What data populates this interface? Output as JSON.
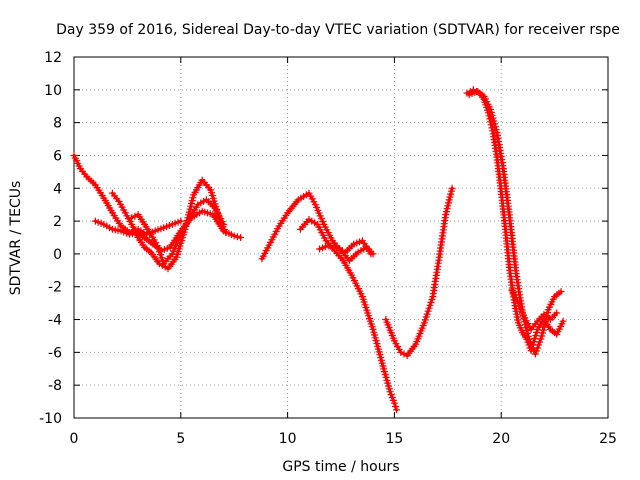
{
  "chart_data": {
    "type": "scatter",
    "title": "Day 359 of 2016, Sidereal Day-to-day VTEC variation (SDTVAR) for receiver rspe",
    "xlabel": "GPS time / hours",
    "ylabel": "SDTVAR / TECUs",
    "xlim": [
      0,
      25
    ],
    "ylim": [
      -10,
      12
    ],
    "xticks": [
      "0",
      "5",
      "10",
      "15",
      "20",
      "25"
    ],
    "yticks": [
      "-10",
      "-8",
      "-6",
      "-4",
      "-2",
      "0",
      "2",
      "4",
      "6",
      "8",
      "10",
      "12"
    ],
    "grid": true,
    "marker": "+",
    "color": "#ff0000",
    "series": [
      {
        "x": [
          0.0,
          0.3,
          0.6,
          1.0,
          1.4,
          1.8,
          2.2,
          2.6,
          3.0,
          3.4,
          3.8,
          4.2,
          4.6,
          5.0
        ],
        "y": [
          6.0,
          5.2,
          4.7,
          4.2,
          3.4,
          2.5,
          1.7,
          1.3,
          1.5,
          1.2,
          1.4,
          1.6,
          1.8,
          2.0
        ]
      },
      {
        "x": [
          1.0,
          1.4,
          1.8,
          2.2,
          2.6,
          3.0,
          3.3,
          3.7,
          4.1,
          4.5,
          5.0,
          5.5,
          6.0,
          6.5,
          7.0,
          7.5,
          7.8
        ],
        "y": [
          2.0,
          1.8,
          1.5,
          1.4,
          1.2,
          1.3,
          1.0,
          0.6,
          0.2,
          0.4,
          1.4,
          2.2,
          2.6,
          2.4,
          1.4,
          1.1,
          1.0
        ]
      },
      {
        "x": [
          1.8,
          2.1,
          2.4,
          2.7,
          3.0,
          3.3,
          3.6,
          4.0,
          4.4,
          4.8,
          5.2,
          5.6,
          6.0,
          6.4,
          6.8,
          7.1
        ],
        "y": [
          3.7,
          3.2,
          2.5,
          1.8,
          1.0,
          0.4,
          0.1,
          -0.6,
          -0.9,
          -0.2,
          1.5,
          3.6,
          4.5,
          3.9,
          2.2,
          1.3
        ]
      },
      {
        "x": [
          2.7,
          3.0,
          3.3,
          3.6,
          3.9,
          4.2,
          4.6,
          5.0,
          5.4,
          5.8,
          6.2,
          6.6,
          7.0
        ],
        "y": [
          2.2,
          2.4,
          1.8,
          1.2,
          0.5,
          -0.6,
          0.0,
          1.2,
          2.2,
          3.0,
          3.3,
          2.8,
          1.8
        ]
      },
      {
        "x": [
          8.8,
          9.2,
          9.6,
          10.0,
          10.5,
          11.0,
          11.3,
          11.7,
          12.1,
          12.5,
          12.9,
          13.3,
          13.7,
          14.0
        ],
        "y": [
          -0.3,
          0.7,
          1.7,
          2.5,
          3.3,
          3.7,
          3.0,
          1.8,
          0.8,
          0.2,
          -0.4,
          0.1,
          0.4,
          0.0
        ]
      },
      {
        "x": [
          10.6,
          11.0,
          11.4,
          11.8,
          12.2,
          12.6,
          13.0,
          13.5,
          14.0,
          14.5,
          14.8,
          15.0,
          15.1
        ],
        "y": [
          1.5,
          2.1,
          1.8,
          0.8,
          0.2,
          -0.4,
          -1.3,
          -2.6,
          -4.6,
          -7.0,
          -8.4,
          -9.1,
          -9.5
        ]
      },
      {
        "x": [
          11.5,
          11.9,
          12.3,
          12.7,
          13.1,
          13.5,
          13.9
        ],
        "y": [
          0.3,
          0.5,
          0.4,
          0.1,
          0.6,
          0.8,
          0.0
        ]
      },
      {
        "x": [
          14.6,
          15.0,
          15.3,
          15.6,
          16.0,
          16.4,
          16.8,
          17.1,
          17.4,
          17.7
        ],
        "y": [
          -4.0,
          -5.3,
          -6.0,
          -6.2,
          -5.5,
          -4.2,
          -2.6,
          -0.2,
          2.4,
          4.0
        ]
      },
      {
        "x": [
          18.4,
          18.7,
          19.0,
          19.2,
          19.4,
          19.6,
          19.8,
          20.0,
          20.2,
          20.4,
          20.6,
          20.8,
          21.0,
          21.2,
          21.4,
          21.7,
          22.0,
          22.3,
          22.6,
          22.9
        ],
        "y": [
          9.8,
          10.0,
          9.8,
          9.4,
          8.6,
          7.5,
          5.9,
          3.8,
          1.5,
          -1.0,
          -2.8,
          -4.2,
          -4.8,
          -5.2,
          -5.9,
          -4.6,
          -4.0,
          -4.6,
          -4.9,
          -4.1
        ]
      },
      {
        "x": [
          18.5,
          18.9,
          19.2,
          19.5,
          19.8,
          20.1,
          20.4,
          20.7,
          21.0,
          21.3,
          21.6,
          21.9,
          22.2,
          22.5,
          22.8
        ],
        "y": [
          9.7,
          9.9,
          9.6,
          8.8,
          7.4,
          5.2,
          2.2,
          -1.2,
          -3.6,
          -5.2,
          -6.1,
          -5.0,
          -3.4,
          -2.6,
          -2.3
        ]
      },
      {
        "x": [
          20.5,
          20.8,
          21.1,
          21.4,
          21.7,
          22.0,
          22.3,
          22.6
        ],
        "y": [
          -2.2,
          -3.0,
          -3.9,
          -4.6,
          -4.1,
          -3.7,
          -4.0,
          -3.6
        ]
      }
    ]
  }
}
